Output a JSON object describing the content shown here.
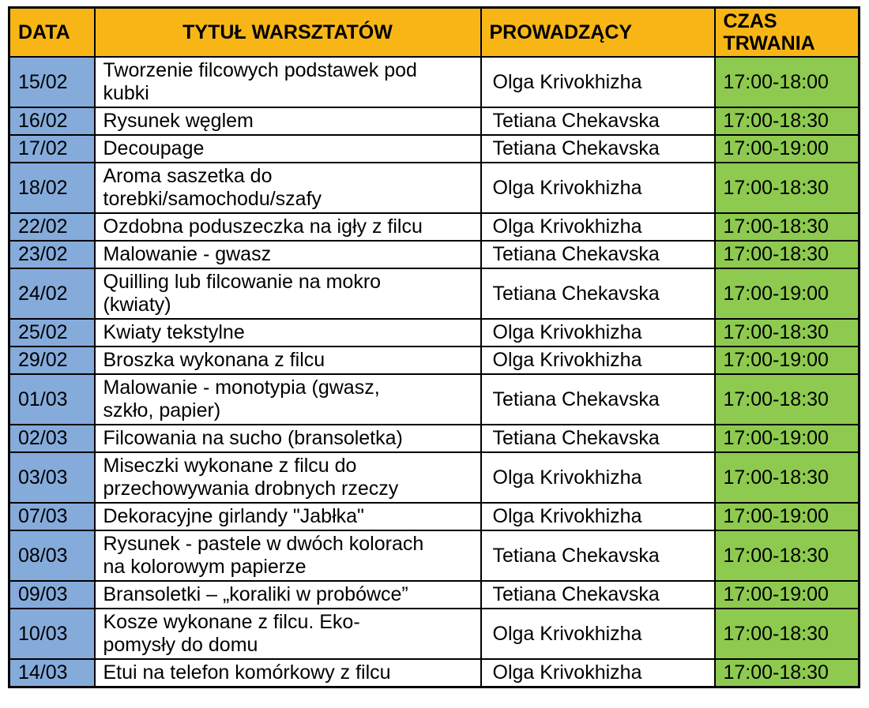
{
  "colors": {
    "header_bg": "#F8B616",
    "date_col_bg": "#85ABDB",
    "duration_col_bg": "#8DCA4F",
    "row_bg": "#FFFFFF",
    "border": "#000000",
    "text": "#000000"
  },
  "table": {
    "columns": [
      {
        "id": "date",
        "label": "DATA"
      },
      {
        "id": "title",
        "label": "TYTUŁ WARSZTATÓW"
      },
      {
        "id": "instructor",
        "label": "PROWADZĄCY"
      },
      {
        "id": "duration",
        "label": "CZAS TRWANIA"
      }
    ],
    "rows": [
      {
        "date": "15/02",
        "title": "Tworzenie filcowych podstawek pod\nkubki",
        "instructor": "Olga Krivokhizha",
        "duration": "17:00-18:00"
      },
      {
        "date": "16/02",
        "title": "Rysunek węglem",
        "instructor": "Tetiana Chekavska",
        "duration": "17:00-18:30"
      },
      {
        "date": "17/02",
        "title": "Decoupage",
        "instructor": "Tetiana Chekavska",
        "duration": "17:00-19:00"
      },
      {
        "date": "18/02",
        "title": "Aroma saszetka do\ntorebki/samochodu/szafy",
        "instructor": "Olga Krivokhizha",
        "duration": "17:00-18:30"
      },
      {
        "date": "22/02",
        "title": "Ozdobna poduszeczka na igły z filcu",
        "instructor": "Olga Krivokhizha",
        "duration": "17:00-18:30"
      },
      {
        "date": "23/02",
        "title": "Malowanie - gwasz",
        "instructor": "Tetiana Chekavska",
        "duration": "17:00-18:30"
      },
      {
        "date": "24/02",
        "title": "Quilling lub filcowanie na mokro\n(kwiaty)",
        "instructor": "Tetiana Chekavska",
        "duration": "17:00-19:00"
      },
      {
        "date": "25/02",
        "title": "Kwiaty tekstylne",
        "instructor": "Olga Krivokhizha",
        "duration": "17:00-18:30"
      },
      {
        "date": "29/02",
        "title": "Broszka wykonana z filcu",
        "instructor": "Olga Krivokhizha",
        "duration": "17:00-19:00"
      },
      {
        "date": "01/03",
        "title": "Malowanie - monotypia (gwasz,\nszkło, papier)",
        "instructor": "Tetiana Chekavska",
        "duration": "17:00-18:30"
      },
      {
        "date": "02/03",
        "title": "Filcowania na sucho (bransoletka)",
        "instructor": "Tetiana Chekavska",
        "duration": "17:00-19:00"
      },
      {
        "date": "03/03",
        "title": "Miseczki wykonane z filcu do\nprzechowywania drobnych rzeczy",
        "instructor": "Olga Krivokhizha",
        "duration": "17:00-18:30"
      },
      {
        "date": "07/03",
        "title": "Dekoracyjne girlandy \"Jabłka\"",
        "instructor": "Olga Krivokhizha",
        "duration": "17:00-19:00"
      },
      {
        "date": "08/03",
        "title": "Rysunek - pastele w dwóch kolorach\nna kolorowym papierze",
        "instructor": "Tetiana Chekavska",
        "duration": "17:00-18:30"
      },
      {
        "date": "09/03",
        "title": "Bransoletki – „koraliki w probówce”",
        "instructor": "Tetiana Chekavska",
        "duration": "17:00-19:00"
      },
      {
        "date": "10/03",
        "title": "Kosze wykonane z filcu. Eko-\npomysły do domu",
        "instructor": "Olga Krivokhizha",
        "duration": "17:00-18:30"
      },
      {
        "date": "14/03",
        "title": "Etui na telefon komórkowy z filcu",
        "instructor": "Olga Krivokhizha",
        "duration": "17:00-18:30"
      }
    ]
  }
}
